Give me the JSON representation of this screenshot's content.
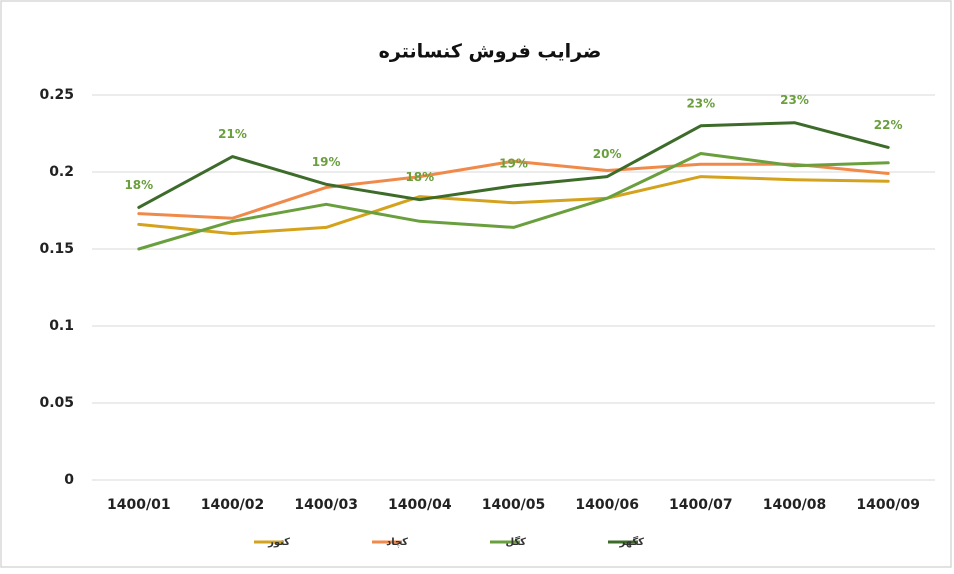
{
  "chart_data": {
    "type": "line",
    "title": "ضرایب فروش کنسانتره",
    "categories": [
      "1400/01",
      "1400/02",
      "1400/03",
      "1400/04",
      "1400/05",
      "1400/06",
      "1400/07",
      "1400/08",
      "1400/09"
    ],
    "series": [
      {
        "name": "کنور",
        "color": "#d4a21c",
        "values": [
          0.166,
          0.16,
          0.164,
          0.184,
          0.18,
          0.183,
          0.197,
          0.195,
          0.194
        ]
      },
      {
        "name": "کچاد",
        "color": "#f08a4b",
        "values": [
          0.173,
          0.17,
          0.19,
          0.197,
          0.207,
          0.201,
          0.205,
          0.205,
          0.199
        ]
      },
      {
        "name": "کگل",
        "color": "#6a9f3e",
        "values": [
          0.15,
          0.168,
          0.179,
          0.168,
          0.164,
          0.183,
          0.212,
          0.204,
          0.206
        ]
      },
      {
        "name": "کگهر",
        "color": "#3d6b2a",
        "values": [
          0.177,
          0.21,
          0.192,
          0.182,
          0.191,
          0.197,
          0.23,
          0.232,
          0.216
        ],
        "value_labels": [
          "18%",
          "21%",
          "19%",
          "18%",
          "19%",
          "20%",
          "23%",
          "23%",
          "22%"
        ]
      }
    ],
    "ylim": [
      0,
      0.25
    ],
    "yticks": [
      0,
      0.05,
      0.1,
      0.15,
      0.2,
      0.25
    ],
    "grid": true,
    "legend": "bottom"
  }
}
